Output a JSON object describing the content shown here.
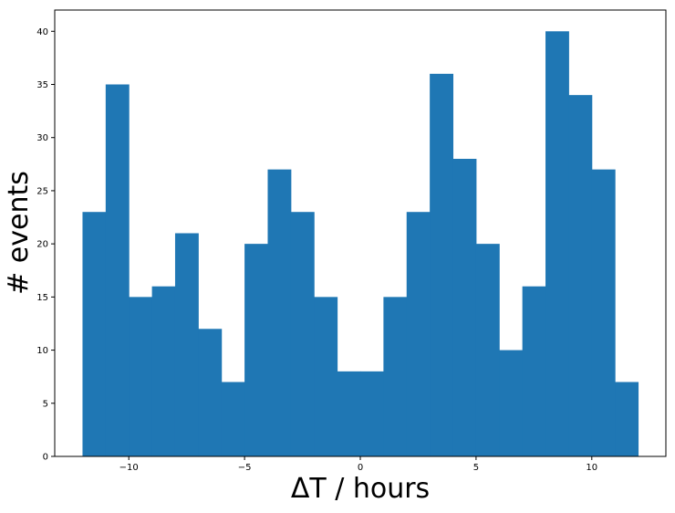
{
  "chart_data": {
    "type": "bar",
    "title": "",
    "xlabel": "ΔT / hours",
    "ylabel": "# events",
    "bin_edges": [
      -12,
      -11,
      -10,
      -9,
      -8,
      -7,
      -6,
      -5,
      -4,
      -3,
      -2,
      -1,
      0,
      1,
      2,
      3,
      4,
      5,
      6,
      7,
      8,
      9,
      10,
      11,
      12
    ],
    "values": [
      23,
      35,
      15,
      16,
      21,
      12,
      7,
      20,
      27,
      23,
      15,
      8,
      8,
      15,
      23,
      36,
      28,
      20,
      10,
      16,
      40,
      34,
      27,
      7
    ],
    "xlim": [
      -13.2,
      13.2
    ],
    "ylim": [
      0,
      42
    ],
    "x_ticks": [
      -10,
      -5,
      0,
      5,
      10
    ],
    "x_tick_labels": [
      "−10",
      "−5",
      "0",
      "5",
      "10"
    ],
    "y_ticks": [
      0,
      5,
      10,
      15,
      20,
      25,
      30,
      35,
      40
    ],
    "y_tick_labels": [
      "0",
      "5",
      "10",
      "15",
      "20",
      "25",
      "30",
      "35",
      "40"
    ],
    "grid": false,
    "bar_color": "#1f77b4"
  }
}
